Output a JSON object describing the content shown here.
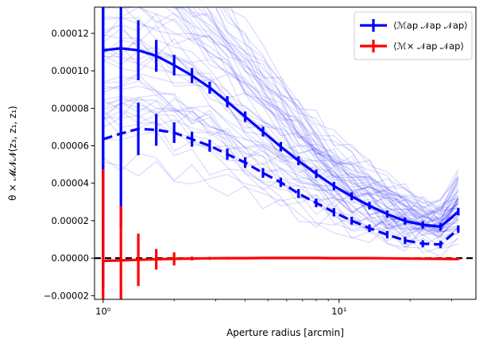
{
  "chart_data": {
    "type": "line",
    "xscale": "log",
    "xlabel": "Aperture radius [arcmin]",
    "ylabel": "θ ×  𝓜𝓝𝓝(z₃, z₁, z₁)",
    "xlim": [
      0.92,
      38
    ],
    "ylim": [
      -2.2e-05,
      0.000134
    ],
    "xticks": [
      {
        "value": 1,
        "label": "10⁰"
      },
      {
        "value": 10,
        "label": "10¹"
      }
    ],
    "yticks": [
      {
        "value": -2e-05,
        "label": "−0.00002"
      },
      {
        "value": 0.0,
        "label": "0.00000"
      },
      {
        "value": 2e-05,
        "label": "0.00002"
      },
      {
        "value": 4e-05,
        "label": "0.00004"
      },
      {
        "value": 6e-05,
        "label": "0.00006"
      },
      {
        "value": 8e-05,
        "label": "0.00008"
      },
      {
        "value": 0.0001,
        "label": "0.00010"
      },
      {
        "value": 0.00012,
        "label": "0.00012"
      }
    ],
    "hline": {
      "y": 0.0,
      "style": "dashed",
      "color": "#000000"
    },
    "legend": {
      "position": "top-right",
      "entries": [
        {
          "label": "⟨ℳap 𝒩ap 𝒩ap⟩",
          "color": "#0000ff"
        },
        {
          "label": "⟨ℳ× 𝒩ap 𝒩ap⟩",
          "color": "#ff0000"
        }
      ]
    },
    "x": [
      1.0,
      1.19,
      1.41,
      1.68,
      2.0,
      2.38,
      2.83,
      3.36,
      4.0,
      4.76,
      5.66,
      6.73,
      8.0,
      9.51,
      11.31,
      13.45,
      16.0,
      19.03,
      22.63,
      26.91,
      32.0
    ],
    "series": [
      {
        "style": "solid",
        "color": "#0000ff",
        "values": [
          0.000111,
          0.000112,
          0.000111,
          0.000108,
          0.000103,
          9.75e-05,
          9.1e-05,
          8.35e-05,
          7.55e-05,
          6.75e-05,
          5.95e-05,
          5.2e-05,
          4.5e-05,
          3.85e-05,
          3.3e-05,
          2.8e-05,
          2.35e-05,
          1.98e-05,
          1.78e-05,
          1.68e-05,
          2.48e-05
        ],
        "errors": [
          9e-05,
          6e-05,
          1.6e-05,
          8.5e-06,
          5.5e-06,
          4e-06,
          3.2e-06,
          3e-06,
          2.8e-06,
          2.6e-06,
          2.5e-06,
          2.4e-06,
          2.3e-06,
          2.2e-06,
          2.1e-06,
          2e-06,
          2e-06,
          1.9e-06,
          1.9e-06,
          1.9e-06,
          2e-06
        ]
      },
      {
        "style": "dashed",
        "color": "#0000ff",
        "values": [
          6.35e-05,
          6.65e-05,
          6.9e-05,
          6.85e-05,
          6.7e-05,
          6.35e-05,
          6e-05,
          5.55e-05,
          5.1e-05,
          4.55e-05,
          4.05e-05,
          3.45e-05,
          2.95e-05,
          2.45e-05,
          2e-05,
          1.6e-05,
          1.25e-05,
          9.5e-06,
          7.7e-06,
          7.3e-06,
          1.55e-05
        ],
        "errors": [
          8e-05,
          5e-05,
          1.4e-05,
          8.5e-06,
          5.5e-06,
          4e-06,
          3.2e-06,
          3e-06,
          2.8e-06,
          2.6e-06,
          2.5e-06,
          2.4e-06,
          2.3e-06,
          2.2e-06,
          2.1e-06,
          2e-06,
          2e-06,
          1.9e-06,
          1.9e-06,
          1.9e-06,
          2e-06
        ]
      },
      {
        "style": "solid",
        "color": "#ff0000",
        "values": [
          -1.5e-06,
          -1.2e-06,
          -9e-07,
          -6e-07,
          -4e-07,
          -2e-07,
          -1e-07,
          0.0,
          0.0,
          1e-07,
          1e-07,
          1e-07,
          1e-07,
          0.0,
          0.0,
          0.0,
          -1e-07,
          -2e-07,
          -3e-07,
          -4e-07,
          -5e-07
        ],
        "errors": [
          4.9e-05,
          2.9e-05,
          1.4e-05,
          5.5e-06,
          3.5e-06,
          1e-06,
          8e-07,
          7e-07,
          6e-07,
          5e-07,
          5e-07,
          5e-07,
          5e-07,
          5e-07,
          5e-07,
          5e-07,
          5e-07,
          5e-07,
          5e-07,
          5e-07,
          5e-07
        ]
      }
    ],
    "background_realizations": {
      "count": 60,
      "color": "#0000ff",
      "opacity": 0.13,
      "scatter_fraction": 0.35
    }
  }
}
